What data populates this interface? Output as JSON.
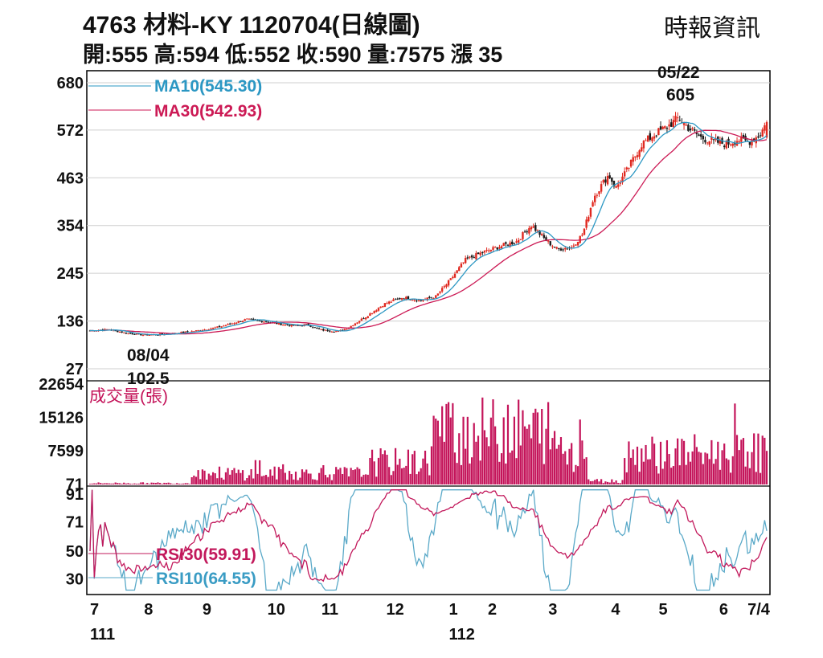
{
  "header": {
    "title": "4763  材料-KY 1120704(日線圖)",
    "source": "時報資訊",
    "ohlc": "開:555 高:594 低:552 收:590 量:7575 漲 35"
  },
  "colors": {
    "up": "#e0281f",
    "down": "#1a1a1a",
    "ma10": "#2b97c3",
    "ma30": "#cc1a55",
    "volume": "#c4145a",
    "rsi10": "#5aa9c8",
    "rsi30": "#c2185b",
    "grid": "#cfcfcf"
  },
  "chart_data": [
    {
      "type": "line",
      "panel": "price",
      "yticks": [
        27,
        136,
        245,
        354,
        463,
        572,
        680
      ],
      "ylim": [
        27,
        680
      ],
      "legend": [
        {
          "id": "ma10",
          "label": "MA10(545.30)"
        },
        {
          "id": "ma30",
          "label": "MA30(542.93)"
        }
      ],
      "annotations": [
        {
          "date": "05/22",
          "value": "605",
          "text_date": "05/22",
          "text_value": "605"
        },
        {
          "date": "08/04",
          "value": "102.5",
          "text_date": "08/04",
          "text_value": "102.5"
        }
      ],
      "close_anchors": [
        [
          0,
          114
        ],
        [
          10,
          117
        ],
        [
          20,
          108
        ],
        [
          30,
          104
        ],
        [
          40,
          106
        ],
        [
          55,
          112
        ],
        [
          70,
          122
        ],
        [
          85,
          140
        ],
        [
          95,
          135
        ],
        [
          105,
          128
        ],
        [
          112,
          125
        ],
        [
          118,
          128
        ],
        [
          125,
          116
        ],
        [
          135,
          112
        ],
        [
          140,
          120
        ],
        [
          150,
          146
        ],
        [
          160,
          175
        ],
        [
          170,
          190
        ],
        [
          180,
          183
        ],
        [
          188,
          192
        ],
        [
          196,
          230
        ],
        [
          204,
          275
        ],
        [
          212,
          290
        ],
        [
          222,
          305
        ],
        [
          232,
          318
        ],
        [
          240,
          355
        ],
        [
          248,
          320
        ],
        [
          254,
          300
        ],
        [
          262,
          305
        ],
        [
          268,
          335
        ],
        [
          274,
          420
        ],
        [
          282,
          470
        ],
        [
          286,
          440
        ],
        [
          292,
          480
        ],
        [
          300,
          540
        ],
        [
          308,
          565
        ],
        [
          314,
          580
        ],
        [
          320,
          600
        ],
        [
          326,
          575
        ],
        [
          332,
          555
        ],
        [
          340,
          545
        ],
        [
          346,
          540
        ],
        [
          352,
          550
        ],
        [
          358,
          545
        ],
        [
          364,
          560
        ],
        [
          368,
          590
        ]
      ],
      "series": [
        {
          "id": "ma10",
          "period": 10,
          "last": 545.3
        },
        {
          "id": "ma30",
          "period": 30,
          "last": 542.93
        }
      ],
      "last_bar": {
        "open": 555,
        "high": 594,
        "low": 552,
        "close": 590
      }
    },
    {
      "type": "bar",
      "panel": "volume",
      "title": "成交量(張)",
      "yticks": [
        71,
        7599,
        15126,
        22654
      ],
      "ylim": [
        0,
        22654
      ],
      "last_volume": 7575
    },
    {
      "type": "line",
      "panel": "rsi",
      "yticks": [
        30,
        50,
        71,
        91
      ],
      "ylim": [
        20,
        95
      ],
      "legend": [
        {
          "id": "rsi30",
          "label": "RSI30(59.91)"
        },
        {
          "id": "rsi10",
          "label": "RSI10(64.55)"
        }
      ],
      "series": [
        {
          "id": "rsi10",
          "period": 10,
          "last": 64.55
        },
        {
          "id": "rsi30",
          "period": 30,
          "last": 59.91
        }
      ]
    }
  ],
  "x_axis": {
    "months": [
      {
        "label": "7",
        "day": 0
      },
      {
        "label": "8",
        "day": 25
      },
      {
        "label": "9",
        "day": 52
      },
      {
        "label": "10",
        "day": 82
      },
      {
        "label": "11",
        "day": 107
      },
      {
        "label": "12",
        "day": 137
      },
      {
        "label": "1",
        "day": 166
      },
      {
        "label": "2",
        "day": 184
      },
      {
        "label": "3",
        "day": 212
      },
      {
        "label": "4",
        "day": 241
      },
      {
        "label": "5",
        "day": 263
      },
      {
        "label": "6",
        "day": 291
      },
      {
        "label": "7/4",
        "day": 313
      }
    ],
    "years": [
      {
        "label": "111",
        "day": 0
      },
      {
        "label": "112",
        "day": 166
      }
    ]
  }
}
